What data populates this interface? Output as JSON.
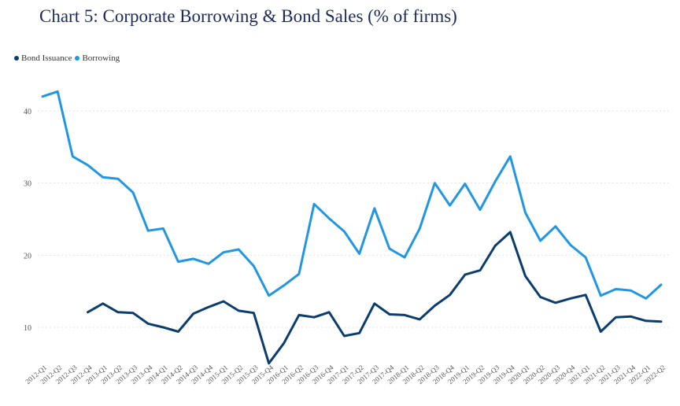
{
  "title": "Chart 5: Corporate Borrowing & Bond Sales (% of firms)",
  "colors": {
    "bond": "#0b3d6e",
    "borrow": "#2196e3",
    "grid": "#e2e2e2",
    "tick": "#555555"
  },
  "chart_data": {
    "type": "line",
    "title": "Chart 5: Corporate Borrowing & Bond Sales (% of firms)",
    "xlabel": "",
    "ylabel": "",
    "ylim": [
      5,
      45
    ],
    "yticks": [
      "10",
      "20",
      "30",
      "40"
    ],
    "grid": true,
    "legend_position": "top-left",
    "categories": [
      "2012-Q1",
      "2012-Q2",
      "2012-Q3",
      "2012-Q4",
      "2013-Q1",
      "2013-Q2",
      "2013-Q3",
      "2013-Q4",
      "2014-Q1",
      "2014-Q2",
      "2014-Q3",
      "2014-Q4",
      "2015-Q1",
      "2015-Q2",
      "2015-Q3",
      "2015-Q4",
      "2016-Q1",
      "2016-Q2",
      "2016-Q3",
      "2016-Q4",
      "2017-Q1",
      "2017-Q2",
      "2017-Q3",
      "2017-Q4",
      "2018-Q1",
      "2018-Q2",
      "2018-Q3",
      "2018-Q4",
      "2019-Q1",
      "2019-Q2",
      "2019-Q3",
      "2019-Q4",
      "2020-Q1",
      "2020-Q2",
      "2020-Q3",
      "2020-Q4",
      "2021-Q1",
      "2021-Q2",
      "2021-Q3",
      "2021-Q4",
      "2022-Q1",
      "2022-Q2"
    ],
    "series": [
      {
        "name": "Bond Issuance",
        "color": "#0b3d6e",
        "values": [
          null,
          null,
          null,
          12.1,
          13.3,
          12.1,
          12.0,
          10.5,
          10.0,
          9.4,
          11.9,
          12.8,
          13.6,
          12.3,
          12.0,
          5.0,
          7.8,
          11.7,
          11.4,
          12.1,
          8.8,
          9.2,
          13.3,
          11.8,
          11.7,
          11.1,
          13.0,
          14.5,
          17.3,
          17.9,
          21.3,
          23.2,
          17.1,
          14.2,
          13.4,
          14.0,
          14.5,
          9.4,
          11.4,
          11.5,
          10.9,
          10.8
        ]
      },
      {
        "name": "Borrowing",
        "color": "#2196e3",
        "values": [
          42.0,
          42.7,
          33.7,
          32.5,
          30.8,
          30.6,
          28.7,
          23.4,
          23.7,
          19.1,
          19.5,
          18.8,
          20.4,
          20.8,
          18.5,
          14.4,
          15.8,
          17.4,
          27.1,
          25.1,
          23.3,
          20.2,
          26.5,
          20.9,
          19.7,
          23.7,
          30.0,
          26.9,
          29.9,
          26.3,
          30.2,
          33.7,
          25.9,
          22.0,
          24.0,
          21.4,
          19.7,
          14.4,
          15.3,
          15.1,
          14.0,
          15.9
        ]
      }
    ]
  }
}
